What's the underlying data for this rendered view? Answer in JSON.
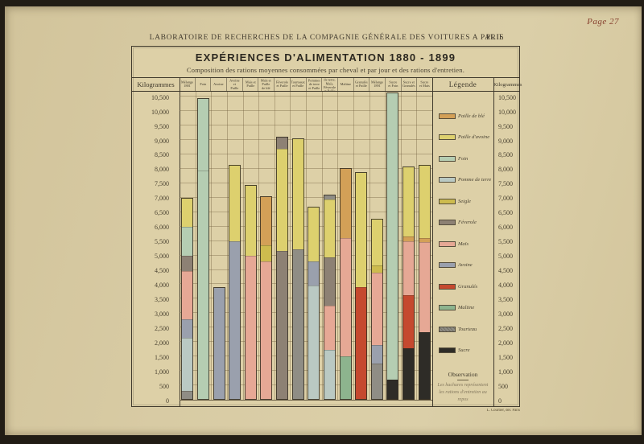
{
  "page": {
    "page_number": "Page 27",
    "header": "LABORATOIRE DE RECHERCHES DE LA COMPAGNIE GÉNÉRALE DES VOITURES A PARIS",
    "plate": "Pl. II.",
    "credit": "L. Courtier, del. Paris"
  },
  "panel": {
    "title": "EXPÉRIENCES D'ALIMENTATION 1880 - 1899",
    "subtitle": "Composition des rations moyennes consommées par cheval et par jour et des rations d'entretien.",
    "axis_left_label": "Kilogrammes",
    "axis_right_label": "Kilogrammes",
    "legend_title": "Légende"
  },
  "legend": {
    "items": [
      {
        "label": "Paille de blé",
        "key": "paille_de_ble",
        "hatched": false
      },
      {
        "label": "Paille d'avoine",
        "key": "paille_avoine",
        "hatched": false
      },
      {
        "label": "Foin",
        "key": "foin",
        "hatched": false
      },
      {
        "label": "Pomme de terre",
        "key": "pomme_de_terre",
        "hatched": false
      },
      {
        "label": "Seigle",
        "key": "seigle",
        "hatched": false
      },
      {
        "label": "Féverole",
        "key": "feverole",
        "hatched": false
      },
      {
        "label": "Maïs",
        "key": "mais",
        "hatched": false
      },
      {
        "label": "Avoine",
        "key": "avoine",
        "hatched": false
      },
      {
        "label": "Granulés",
        "key": "granules",
        "hatched": false
      },
      {
        "label": "Maltine",
        "key": "maltine",
        "hatched": false
      },
      {
        "label": "Tourteau",
        "key": "tourteau",
        "hatched": true
      },
      {
        "label": "Sucre",
        "key": "sucre",
        "hatched": false
      }
    ],
    "observation_title": "Observation",
    "observation_text": "Les hachures représentent les rations d'entretien au repos"
  },
  "chart_data": {
    "type": "bar",
    "stacked": true,
    "title": "EXPÉRIENCES D'ALIMENTATION 1880 - 1899",
    "unit": "Kilogrammes",
    "ylim": [
      0,
      10700
    ],
    "ytick_step": 500,
    "ytick_max": 10500,
    "grid": true,
    "legend_position": "right",
    "annotation": "Les hachures représentent les rations d'entretien au repos",
    "colors": {
      "paille_de_ble": "#d3a057",
      "paille_avoine": "#ddd06e",
      "foin": "#b5cdb2",
      "pomme_de_terre": "#bac9c3",
      "seigle": "#cdbb4e",
      "feverole": "#8d8174",
      "mais": "#e6a895",
      "avoine": "#9aa0ad",
      "granules": "#c5492f",
      "maltine": "#8db48e",
      "tourteau": "#8f8d85",
      "sucre": "#2e2c27"
    },
    "categories": [
      "Mélange 1881",
      "Foin",
      "Avoine",
      "Avoine et Paille",
      "Maïs et Paille",
      "Maïs et Paille de blé",
      "Féverole et Paille",
      "Tourteaux et Paille",
      "Pommes de terre et Paille",
      "Pommes de terre, Maïs, Féverole et Paille",
      "Maltine",
      "Granulés et Paille",
      "Mélange 1891",
      "Sucre et Foin",
      "Sucre et Granulés",
      "Sucre et Maïs"
    ],
    "bars": [
      {
        "category": "Mélange 1881",
        "total": 7000,
        "segments": [
          {
            "ingredient": "tourteau",
            "from": 0,
            "to": 300,
            "hatched": true
          },
          {
            "ingredient": "pomme_de_terre",
            "from": 300,
            "to": 2150,
            "hatched": true
          },
          {
            "ingredient": "avoine",
            "from": 2150,
            "to": 2800,
            "hatched": true
          },
          {
            "ingredient": "mais",
            "from": 2800,
            "to": 4450,
            "hatched": true
          },
          {
            "ingredient": "feverole",
            "from": 4450,
            "to": 5000,
            "hatched": true
          },
          {
            "ingredient": "foin",
            "from": 5000,
            "to": 6000,
            "hatched": true
          },
          {
            "ingredient": "paille_avoine",
            "from": 6000,
            "to": 7000,
            "hatched": false
          }
        ]
      },
      {
        "category": "Foin",
        "total": 10450,
        "segments": [
          {
            "ingredient": "foin",
            "from": 0,
            "to": 7950,
            "hatched": true
          },
          {
            "ingredient": "foin",
            "from": 7950,
            "to": 10450,
            "hatched": false
          }
        ]
      },
      {
        "category": "Avoine",
        "total": 3900,
        "segments": [
          {
            "ingredient": "avoine",
            "from": 0,
            "to": 3900,
            "hatched": true
          }
        ]
      },
      {
        "category": "Avoine et Paille",
        "total": 8150,
        "segments": [
          {
            "ingredient": "avoine",
            "from": 0,
            "to": 5500,
            "hatched": true
          },
          {
            "ingredient": "paille_avoine",
            "from": 5500,
            "to": 8150,
            "hatched": true
          }
        ]
      },
      {
        "category": "Maïs et Paille",
        "total": 7450,
        "segments": [
          {
            "ingredient": "mais",
            "from": 0,
            "to": 5000,
            "hatched": true
          },
          {
            "ingredient": "paille_avoine",
            "from": 5000,
            "to": 7450,
            "hatched": true
          }
        ]
      },
      {
        "category": "Maïs et Paille de blé",
        "total": 7050,
        "segments": [
          {
            "ingredient": "mais",
            "from": 0,
            "to": 4800,
            "hatched": true
          },
          {
            "ingredient": "seigle",
            "from": 4800,
            "to": 5350,
            "hatched": true
          },
          {
            "ingredient": "paille_de_ble",
            "from": 5350,
            "to": 7050,
            "hatched": true
          }
        ]
      },
      {
        "category": "Féverole et Paille",
        "total": 9100,
        "segments": [
          {
            "ingredient": "feverole",
            "from": 0,
            "to": 5150,
            "hatched": true
          },
          {
            "ingredient": "paille_avoine",
            "from": 5150,
            "to": 8700,
            "hatched": true
          },
          {
            "ingredient": "feverole",
            "from": 8700,
            "to": 9100,
            "hatched": false
          }
        ]
      },
      {
        "category": "Tourteaux et Paille",
        "total": 9050,
        "segments": [
          {
            "ingredient": "tourteau",
            "from": 0,
            "to": 5200,
            "hatched": true
          },
          {
            "ingredient": "paille_avoine",
            "from": 5200,
            "to": 9050,
            "hatched": true
          }
        ]
      },
      {
        "category": "Pommes de terre et Paille",
        "total": 6700,
        "segments": [
          {
            "ingredient": "pomme_de_terre",
            "from": 0,
            "to": 3950,
            "hatched": true
          },
          {
            "ingredient": "avoine",
            "from": 3950,
            "to": 4800,
            "hatched": true
          },
          {
            "ingredient": "paille_avoine",
            "from": 4800,
            "to": 6700,
            "hatched": true
          }
        ]
      },
      {
        "category": "Pommes de terre, Maïs, Féverole et Paille",
        "total": 7100,
        "segments": [
          {
            "ingredient": "pomme_de_terre",
            "from": 0,
            "to": 1730,
            "hatched": true
          },
          {
            "ingredient": "mais",
            "from": 1730,
            "to": 3260,
            "hatched": true
          },
          {
            "ingredient": "feverole",
            "from": 3260,
            "to": 4930,
            "hatched": true
          },
          {
            "ingredient": "paille_avoine",
            "from": 4930,
            "to": 6950,
            "hatched": true
          },
          {
            "ingredient": "tourteau",
            "from": 6950,
            "to": 7100,
            "hatched": false
          }
        ]
      },
      {
        "category": "Maltine",
        "total": 8030,
        "segments": [
          {
            "ingredient": "maltine",
            "from": 0,
            "to": 1500,
            "hatched": false
          },
          {
            "ingredient": "mais",
            "from": 1500,
            "to": 5600,
            "hatched": true
          },
          {
            "ingredient": "paille_de_ble",
            "from": 5600,
            "to": 8030,
            "hatched": true
          }
        ]
      },
      {
        "category": "Granulés et Paille",
        "total": 7890,
        "segments": [
          {
            "ingredient": "granules",
            "from": 0,
            "to": 3900,
            "hatched": false
          },
          {
            "ingredient": "paille_avoine",
            "from": 3900,
            "to": 7890,
            "hatched": false
          }
        ]
      },
      {
        "category": "Mélange 1891",
        "total": 6270,
        "segments": [
          {
            "ingredient": "tourteau",
            "from": 0,
            "to": 1250,
            "hatched": true
          },
          {
            "ingredient": "avoine",
            "from": 1250,
            "to": 1900,
            "hatched": false
          },
          {
            "ingredient": "mais",
            "from": 1900,
            "to": 4400,
            "hatched": true
          },
          {
            "ingredient": "seigle",
            "from": 4400,
            "to": 4650,
            "hatched": false
          },
          {
            "ingredient": "paille_avoine",
            "from": 4650,
            "to": 6270,
            "hatched": true
          }
        ]
      },
      {
        "category": "Sucre et Foin",
        "total": 10640,
        "segments": [
          {
            "ingredient": "sucre",
            "from": 0,
            "to": 700,
            "hatched": false
          },
          {
            "ingredient": "foin",
            "from": 700,
            "to": 10640,
            "hatched": false
          }
        ]
      },
      {
        "category": "Sucre et Granulés",
        "total": 8080,
        "segments": [
          {
            "ingredient": "sucre",
            "from": 0,
            "to": 1780,
            "hatched": false
          },
          {
            "ingredient": "granules",
            "from": 1780,
            "to": 3620,
            "hatched": false
          },
          {
            "ingredient": "mais",
            "from": 3620,
            "to": 5480,
            "hatched": false
          },
          {
            "ingredient": "paille_de_ble",
            "from": 5480,
            "to": 5650,
            "hatched": false
          },
          {
            "ingredient": "paille_avoine",
            "from": 5650,
            "to": 8080,
            "hatched": false
          }
        ]
      },
      {
        "category": "Sucre et Maïs",
        "total": 8130,
        "segments": [
          {
            "ingredient": "sucre",
            "from": 0,
            "to": 2340,
            "hatched": false
          },
          {
            "ingredient": "mais",
            "from": 2340,
            "to": 5450,
            "hatched": false
          },
          {
            "ingredient": "paille_de_ble",
            "from": 5450,
            "to": 5600,
            "hatched": false
          },
          {
            "ingredient": "paille_avoine",
            "from": 5600,
            "to": 8130,
            "hatched": false
          }
        ]
      }
    ]
  }
}
